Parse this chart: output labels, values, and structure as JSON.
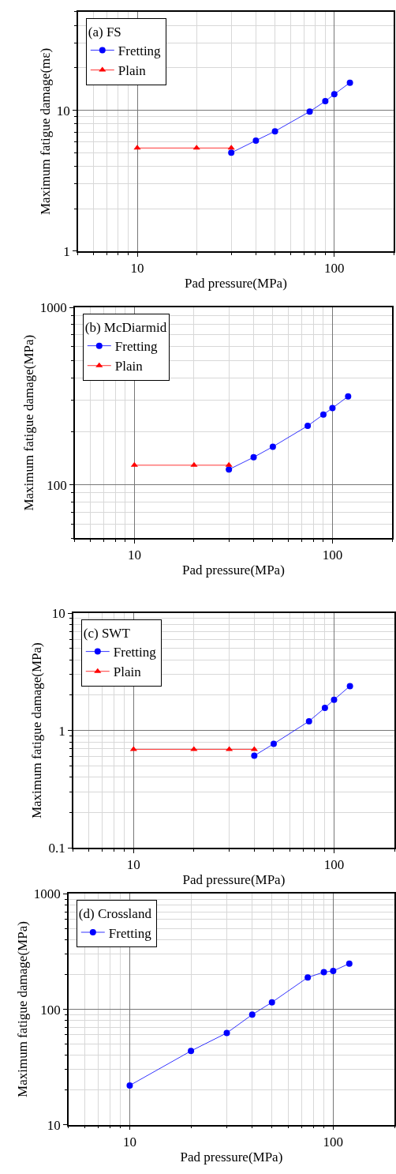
{
  "chart_data": [
    {
      "type": "line",
      "xlabel": "Pad pressure(MPa)",
      "ylabel": "Maximum fatigue damage(mε)",
      "legend_title": "(a) FS",
      "legend": "top left",
      "log": "xy",
      "grid": true,
      "xlim": [
        5,
        200
      ],
      "xticks": [
        {
          "value": 5,
          "label": null
        },
        {
          "value": 6,
          "label": null
        },
        {
          "value": 7,
          "label": null
        },
        {
          "value": 8,
          "label": null
        },
        {
          "value": 9,
          "label": null
        },
        10,
        {
          "value": 20,
          "label": null
        },
        {
          "value": 30,
          "label": null
        },
        {
          "value": 40,
          "label": null
        },
        {
          "value": 50,
          "label": null
        },
        {
          "value": 60,
          "label": null
        },
        {
          "value": 70,
          "label": null
        },
        {
          "value": 80,
          "label": null
        },
        {
          "value": 90,
          "label": null
        },
        100,
        {
          "value": 200,
          "label": null
        }
      ],
      "ylim": [
        1,
        50
      ],
      "yticks": [
        1,
        {
          "value": 2,
          "label": null
        },
        {
          "value": 3,
          "label": null
        },
        {
          "value": 4,
          "label": null
        },
        {
          "value": 5,
          "label": null
        },
        {
          "value": 6,
          "label": null
        },
        {
          "value": 7,
          "label": null
        },
        {
          "value": 8,
          "label": null
        },
        {
          "value": 9,
          "label": null
        },
        10,
        {
          "value": 20,
          "label": null
        },
        {
          "value": 30,
          "label": null
        },
        {
          "value": 40,
          "label": null
        },
        {
          "value": 50,
          "label": null
        }
      ],
      "series": [
        {
          "name": "Fretting",
          "color": "#0000ff",
          "marker": "circle",
          "x": [
            30,
            40,
            50,
            75,
            90,
            100,
            120
          ],
          "values": [
            5.0,
            6.1,
            7.1,
            9.8,
            11.6,
            13.0,
            15.7
          ]
        },
        {
          "name": "Plain",
          "color": "#ff0000",
          "marker": "triangle",
          "x": [
            10,
            20,
            30
          ],
          "values": [
            5.4,
            5.4,
            5.4
          ]
        }
      ]
    },
    {
      "type": "line",
      "xlabel": "Pad pressure(MPa)",
      "ylabel": "Maximum fatigue damage(MPa)",
      "legend_title": "(b) McDiarmid",
      "legend": "top left",
      "log": "xy",
      "grid": true,
      "xlim": [
        5,
        200
      ],
      "xticks": [
        {
          "value": 5,
          "label": null
        },
        {
          "value": 6,
          "label": null
        },
        {
          "value": 7,
          "label": null
        },
        {
          "value": 8,
          "label": null
        },
        {
          "value": 9,
          "label": null
        },
        10,
        {
          "value": 20,
          "label": null
        },
        {
          "value": 30,
          "label": null
        },
        {
          "value": 40,
          "label": null
        },
        {
          "value": 50,
          "label": null
        },
        {
          "value": 60,
          "label": null
        },
        {
          "value": 70,
          "label": null
        },
        {
          "value": 80,
          "label": null
        },
        {
          "value": 90,
          "label": null
        },
        100,
        {
          "value": 200,
          "label": null
        }
      ],
      "ylim": [
        50,
        1000
      ],
      "yticks": [
        {
          "value": 50,
          "label": null
        },
        {
          "value": 60,
          "label": null
        },
        {
          "value": 70,
          "label": null
        },
        {
          "value": 80,
          "label": null
        },
        {
          "value": 90,
          "label": null
        },
        100,
        {
          "value": 200,
          "label": null
        },
        {
          "value": 300,
          "label": null
        },
        {
          "value": 400,
          "label": null
        },
        {
          "value": 500,
          "label": null
        },
        {
          "value": 600,
          "label": null
        },
        {
          "value": 700,
          "label": null
        },
        {
          "value": 800,
          "label": null
        },
        {
          "value": 900,
          "label": null
        },
        1000
      ],
      "series": [
        {
          "name": "Fretting",
          "color": "#0000ff",
          "marker": "circle",
          "x": [
            30,
            40,
            50,
            75,
            90,
            100,
            120
          ],
          "values": [
            122,
            143,
            164,
            215,
            249,
            271,
            315
          ]
        },
        {
          "name": "Plain",
          "color": "#ff0000",
          "marker": "triangle",
          "x": [
            10,
            20,
            30
          ],
          "values": [
            129,
            129,
            129
          ]
        }
      ]
    },
    {
      "type": "line",
      "xlabel": "Pad pressure(MPa)",
      "ylabel": "Maximum fatigue damage(MPa)",
      "legend_title": "(c) SWT",
      "legend": "top left",
      "log": "xy",
      "grid": true,
      "xlim": [
        5,
        200
      ],
      "xticks": [
        {
          "value": 5,
          "label": null
        },
        {
          "value": 6,
          "label": null
        },
        {
          "value": 7,
          "label": null
        },
        {
          "value": 8,
          "label": null
        },
        {
          "value": 9,
          "label": null
        },
        10,
        {
          "value": 20,
          "label": null
        },
        {
          "value": 30,
          "label": null
        },
        {
          "value": 40,
          "label": null
        },
        {
          "value": 50,
          "label": null
        },
        {
          "value": 60,
          "label": null
        },
        {
          "value": 70,
          "label": null
        },
        {
          "value": 80,
          "label": null
        },
        {
          "value": 90,
          "label": null
        },
        100,
        {
          "value": 200,
          "label": null
        }
      ],
      "ylim": [
        0.1,
        10
      ],
      "yticks": [
        0.1,
        {
          "value": 0.2,
          "label": null
        },
        {
          "value": 0.3,
          "label": null
        },
        {
          "value": 0.4,
          "label": null
        },
        {
          "value": 0.5,
          "label": null
        },
        {
          "value": 0.6,
          "label": null
        },
        {
          "value": 0.7,
          "label": null
        },
        {
          "value": 0.8,
          "label": null
        },
        {
          "value": 0.9,
          "label": null
        },
        1,
        {
          "value": 2,
          "label": null
        },
        {
          "value": 3,
          "label": null
        },
        {
          "value": 4,
          "label": null
        },
        {
          "value": 5,
          "label": null
        },
        {
          "value": 6,
          "label": null
        },
        {
          "value": 7,
          "label": null
        },
        {
          "value": 8,
          "label": null
        },
        {
          "value": 9,
          "label": null
        },
        10
      ],
      "series": [
        {
          "name": "Fretting",
          "color": "#0000ff",
          "marker": "circle",
          "x": [
            40,
            50,
            75,
            90,
            100,
            120
          ],
          "values": [
            0.61,
            0.77,
            1.2,
            1.56,
            1.83,
            2.39
          ]
        },
        {
          "name": "Plain",
          "color": "#ff0000",
          "marker": "triangle",
          "x": [
            10,
            20,
            30,
            40
          ],
          "values": [
            0.69,
            0.69,
            0.69,
            0.69
          ]
        }
      ]
    },
    {
      "type": "line",
      "xlabel": "Pad pressure(MPa)",
      "ylabel": "Maximum fatigue damage(MPa)",
      "legend_title": "(d) Crossland",
      "legend": "top left",
      "log": "xy",
      "grid": true,
      "xlim": [
        5,
        200
      ],
      "xticks": [
        {
          "value": 5,
          "label": null
        },
        {
          "value": 6,
          "label": null
        },
        {
          "value": 7,
          "label": null
        },
        {
          "value": 8,
          "label": null
        },
        {
          "value": 9,
          "label": null
        },
        10,
        {
          "value": 20,
          "label": null
        },
        {
          "value": 30,
          "label": null
        },
        {
          "value": 40,
          "label": null
        },
        {
          "value": 50,
          "label": null
        },
        {
          "value": 60,
          "label": null
        },
        {
          "value": 70,
          "label": null
        },
        {
          "value": 80,
          "label": null
        },
        {
          "value": 90,
          "label": null
        },
        100,
        {
          "value": 200,
          "label": null
        }
      ],
      "ylim": [
        10,
        1000
      ],
      "yticks": [
        10,
        {
          "value": 20,
          "label": null
        },
        {
          "value": 30,
          "label": null
        },
        {
          "value": 40,
          "label": null
        },
        {
          "value": 50,
          "label": null
        },
        {
          "value": 60,
          "label": null
        },
        {
          "value": 70,
          "label": null
        },
        {
          "value": 80,
          "label": null
        },
        {
          "value": 90,
          "label": null
        },
        100,
        {
          "value": 200,
          "label": null
        },
        {
          "value": 300,
          "label": null
        },
        {
          "value": 400,
          "label": null
        },
        {
          "value": 500,
          "label": null
        },
        {
          "value": 600,
          "label": null
        },
        {
          "value": 700,
          "label": null
        },
        {
          "value": 800,
          "label": null
        },
        {
          "value": 900,
          "label": null
        },
        1000
      ],
      "series": [
        {
          "name": "Fretting",
          "color": "#0000ff",
          "marker": "circle",
          "x": [
            10,
            20,
            30,
            40,
            50,
            75,
            90,
            100,
            120
          ],
          "values": [
            21.9,
            43.6,
            62.4,
            90,
            115,
            189,
            210,
            215,
            249
          ]
        }
      ]
    }
  ]
}
